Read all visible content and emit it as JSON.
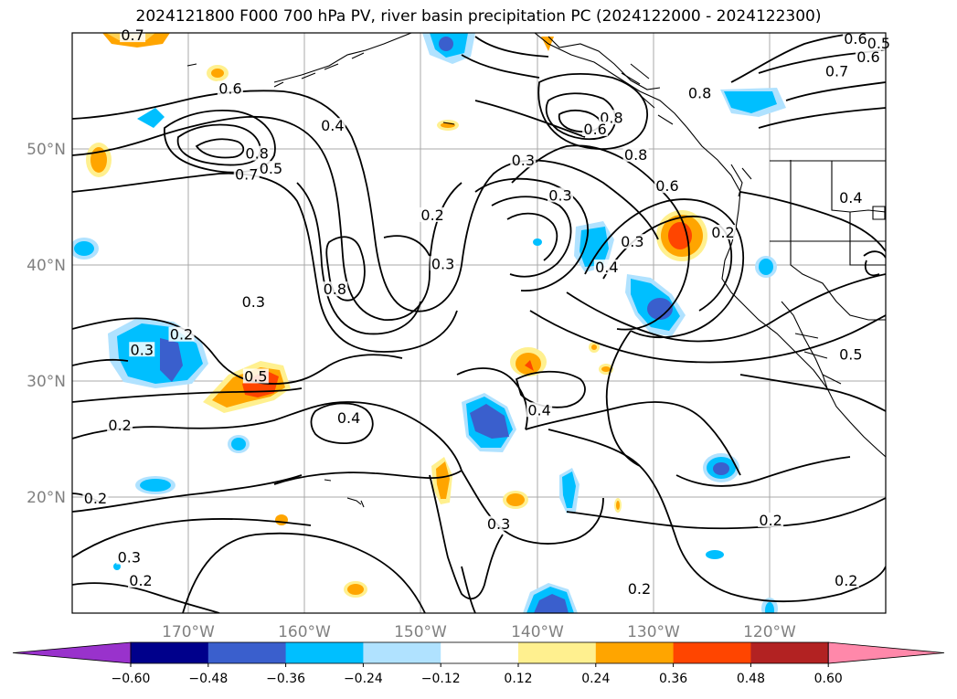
{
  "title": "2024121800 F000 700 hPa PV, river basin precipitation PC (2024122000 - 2024122300)",
  "map": {
    "lat_labels": [
      "50°N",
      "40°N",
      "30°N",
      "20°N"
    ],
    "lon_labels": [
      "170°W",
      "160°W",
      "150°W",
      "140°W",
      "130°W",
      "120°W"
    ],
    "lon_range": [
      -180,
      -110
    ],
    "lat_range": [
      10,
      60
    ],
    "grid": true
  },
  "pv_contour_labels": [
    {
      "text": "0.7",
      "lon": -174.8,
      "lat": 59.6
    },
    {
      "text": "0.6",
      "lon": -166.4,
      "lat": 55.0
    },
    {
      "text": "0.4",
      "lon": -157.6,
      "lat": 51.8
    },
    {
      "text": "0.8",
      "lon": -164.1,
      "lat": 49.4
    },
    {
      "text": "0.5",
      "lon": -162.9,
      "lat": 48.1
    },
    {
      "text": "0.7",
      "lon": -165.0,
      "lat": 47.6
    },
    {
      "text": "0.2",
      "lon": -149.0,
      "lat": 44.1
    },
    {
      "text": "0.3",
      "lon": -148.1,
      "lat": 39.9
    },
    {
      "text": "0.8",
      "lon": -157.4,
      "lat": 37.7
    },
    {
      "text": "0.3",
      "lon": -164.4,
      "lat": 36.6
    },
    {
      "text": "0.2",
      "lon": -170.6,
      "lat": 33.8
    },
    {
      "text": "0.3",
      "lon": -174.0,
      "lat": 32.5
    },
    {
      "text": "0.5",
      "lon": -164.2,
      "lat": 30.2
    },
    {
      "text": "0.2",
      "lon": -175.9,
      "lat": 26.0
    },
    {
      "text": "0.4",
      "lon": -156.2,
      "lat": 26.6
    },
    {
      "text": "0.2",
      "lon": -178.0,
      "lat": 19.7
    },
    {
      "text": "0.3",
      "lon": -175.1,
      "lat": 14.6
    },
    {
      "text": "0.2",
      "lon": -174.1,
      "lat": 12.6
    },
    {
      "text": "0.4",
      "lon": -139.8,
      "lat": 27.3
    },
    {
      "text": "0.3",
      "lon": -143.3,
      "lat": 17.5
    },
    {
      "text": "0.2",
      "lon": -131.2,
      "lat": 11.9
    },
    {
      "text": "0.2",
      "lon": -119.9,
      "lat": 17.8
    },
    {
      "text": "0.2",
      "lon": -113.4,
      "lat": 12.6
    },
    {
      "text": "0.3",
      "lon": -141.2,
      "lat": 48.8
    },
    {
      "text": "0.3",
      "lon": -138.0,
      "lat": 45.8
    },
    {
      "text": "0.8",
      "lon": -133.6,
      "lat": 52.5
    },
    {
      "text": "0.6",
      "lon": -135.0,
      "lat": 51.5
    },
    {
      "text": "0.8",
      "lon": -131.5,
      "lat": 49.3
    },
    {
      "text": "0.8",
      "lon": -126.0,
      "lat": 54.6
    },
    {
      "text": "0.6",
      "lon": -128.8,
      "lat": 46.6
    },
    {
      "text": "0.3",
      "lon": -131.8,
      "lat": 41.8
    },
    {
      "text": "0.4",
      "lon": -134.0,
      "lat": 39.6
    },
    {
      "text": "0.2",
      "lon": -124.0,
      "lat": 42.6
    },
    {
      "text": "0.4",
      "lon": -113.0,
      "lat": 45.6
    },
    {
      "text": "0.5",
      "lon": -113.0,
      "lat": 32.1
    },
    {
      "text": "0.7",
      "lon": -114.2,
      "lat": 56.5
    },
    {
      "text": "0.6",
      "lon": -111.5,
      "lat": 57.7
    },
    {
      "text": "0.5",
      "lon": -110.6,
      "lat": 58.9
    },
    {
      "text": "0.6",
      "lon": -112.6,
      "lat": 59.3
    }
  ],
  "colorbar": {
    "tick_labels": [
      "−0.60",
      "−0.48",
      "−0.36",
      "−0.24",
      "−0.12",
      "0.12",
      "0.24",
      "0.36",
      "0.48",
      "0.60"
    ],
    "colors": [
      "#9932cc",
      "#00008b",
      "#3a5fcd",
      "#00bfff",
      "#b0e2ff",
      "#ffffff",
      "#fff08f",
      "#ffa500",
      "#ff4500",
      "#b22222",
      "#ff88aa"
    ]
  }
}
